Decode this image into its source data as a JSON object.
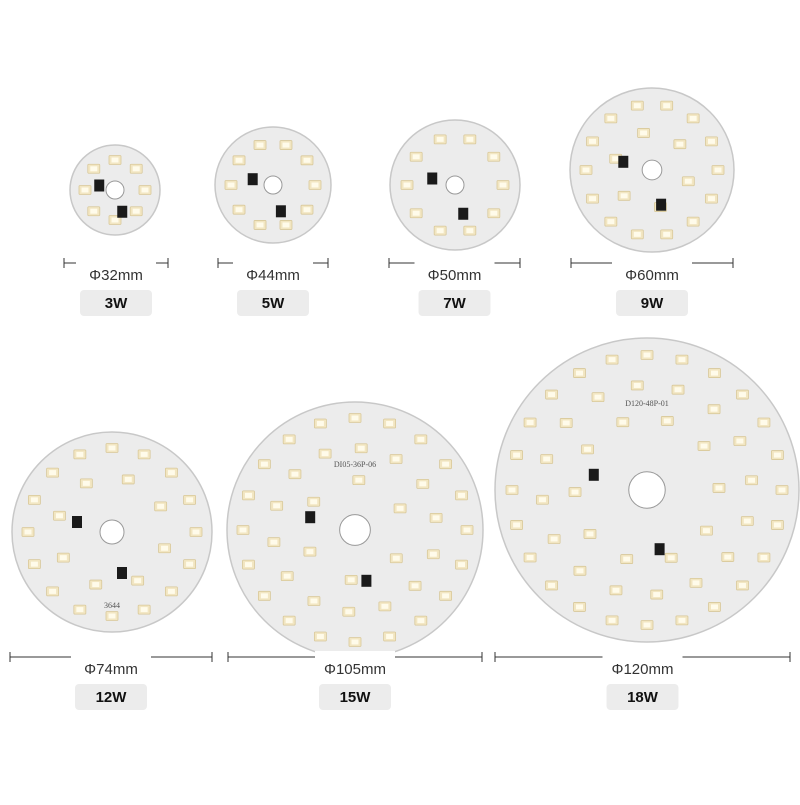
{
  "products": [
    {
      "diameter": "Φ32mm",
      "power": "3W"
    },
    {
      "diameter": "Φ44mm",
      "power": "5W"
    },
    {
      "diameter": "Φ50mm",
      "power": "7W"
    },
    {
      "diameter": "Φ60mm",
      "power": "9W"
    },
    {
      "diameter": "Φ74mm",
      "power": "12W",
      "marking": "3644"
    },
    {
      "diameter": "Φ105mm",
      "power": "15W",
      "marking": "DI05-36P-06"
    },
    {
      "diameter": "Φ120mm",
      "power": "18W",
      "marking": "D120-48P-01"
    }
  ]
}
